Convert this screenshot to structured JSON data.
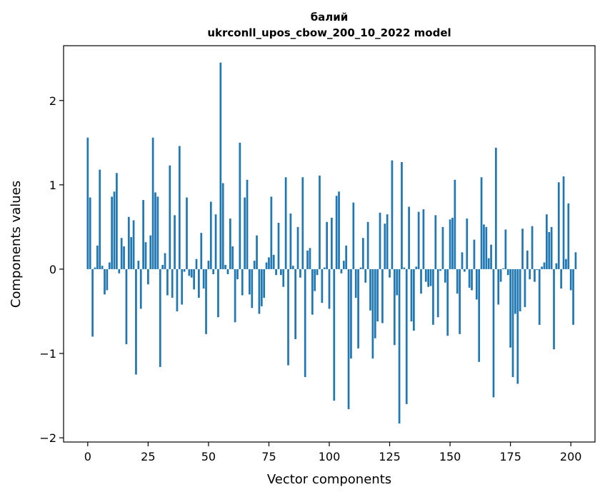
{
  "chart_data": {
    "type": "bar",
    "title": "балий",
    "subtitle": "ukrconll_upos_cbow_200_10_2022 model",
    "xlabel": "Vector components",
    "ylabel": "Components values",
    "xlim": [
      -10,
      210
    ],
    "ylim": [
      -2.05,
      2.65
    ],
    "x_ticks": [
      0,
      25,
      50,
      75,
      100,
      125,
      150,
      175,
      200
    ],
    "y_ticks": [
      -2,
      -1,
      0,
      1,
      2
    ],
    "x_tick_labels": [
      "0",
      "25",
      "50",
      "75",
      "100",
      "125",
      "150",
      "175",
      "200"
    ],
    "y_tick_labels": [
      "−2",
      "−1",
      "0",
      "1",
      "2"
    ],
    "bar_color": "#1f77b4",
    "grid": false,
    "legend": "none",
    "values": [
      1.56,
      0.85,
      -0.8,
      0.02,
      0.28,
      1.18,
      0.04,
      -0.3,
      -0.25,
      0.08,
      0.86,
      0.92,
      1.14,
      -0.05,
      0.37,
      0.27,
      -0.89,
      0.62,
      0.38,
      0.58,
      -1.25,
      0.1,
      -0.47,
      0.82,
      0.32,
      -0.18,
      0.4,
      1.56,
      0.91,
      0.86,
      -1.16,
      0.05,
      0.19,
      -0.31,
      1.23,
      -0.34,
      0.64,
      -0.5,
      1.46,
      -0.42,
      -0.03,
      0.85,
      -0.08,
      -0.1,
      -0.24,
      0.12,
      -0.34,
      0.43,
      -0.23,
      -0.77,
      0.1,
      0.8,
      -0.06,
      0.65,
      -0.57,
      2.45,
      1.02,
      0.05,
      -0.06,
      0.6,
      0.27,
      -0.63,
      -0.12,
      1.5,
      -0.31,
      0.85,
      1.06,
      -0.3,
      -0.46,
      0.1,
      0.4,
      -0.53,
      -0.44,
      -0.34,
      0.08,
      0.14,
      0.86,
      0.17,
      -0.07,
      0.55,
      -0.07,
      -0.21,
      1.09,
      -1.14,
      0.66,
      0.04,
      -0.83,
      0.5,
      -0.1,
      1.09,
      -1.28,
      0.22,
      0.25,
      -0.54,
      -0.26,
      -0.07,
      1.11,
      -0.4,
      0.02,
      0.56,
      -0.47,
      0.61,
      -1.56,
      0.87,
      0.92,
      -0.05,
      0.1,
      0.28,
      -1.66,
      -1.06,
      0.79,
      -0.34,
      -0.94,
      0.02,
      0.37,
      -0.16,
      0.56,
      -0.49,
      -1.06,
      -0.82,
      -0.62,
      0.67,
      -0.64,
      0.54,
      0.65,
      -0.1,
      1.29,
      -0.9,
      -0.31,
      -1.83,
      1.27,
      0.02,
      -1.6,
      0.74,
      -0.62,
      -0.73,
      0.03,
      0.68,
      -0.29,
      0.71,
      -0.15,
      -0.21,
      -0.2,
      -0.66,
      0.64,
      -0.57,
      -0.02,
      0.5,
      -0.16,
      -0.79,
      0.59,
      0.61,
      1.06,
      -0.29,
      -0.77,
      0.2,
      -0.03,
      0.6,
      -0.22,
      -0.25,
      0.35,
      -0.36,
      -1.1,
      1.09,
      0.53,
      0.5,
      0.13,
      0.29,
      -1.52,
      1.44,
      -0.42,
      -0.15,
      0.01,
      0.47,
      -0.07,
      -0.93,
      -1.28,
      -0.53,
      -1.36,
      -0.5,
      0.48,
      -0.45,
      0.22,
      -0.12,
      0.51,
      -0.15,
      -0.01,
      -0.66,
      0.03,
      0.08,
      0.65,
      0.44,
      0.5,
      -0.95,
      0.07,
      1.03,
      -0.23,
      1.1,
      0.12,
      0.78,
      -0.25,
      -0.66,
      0.2
    ]
  }
}
